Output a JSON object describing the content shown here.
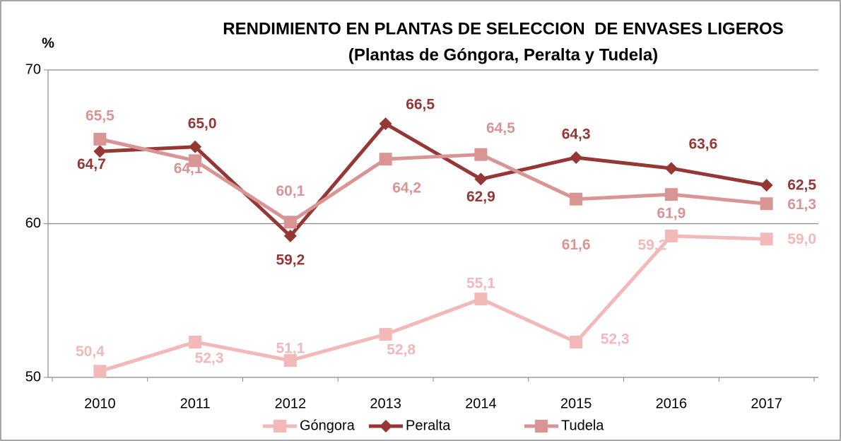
{
  "chart_data": {
    "type": "line",
    "title": "RENDIMIENTO EN PLANTAS DE SELECCION  DE ENVASES LIGEROS",
    "subtitle": "(Plantas de Góngora, Peralta y Tudela)",
    "y_label": "%",
    "categories": [
      "2010",
      "2011",
      "2012",
      "2013",
      "2014",
      "2015",
      "2016",
      "2017"
    ],
    "series": [
      {
        "name": "Góngora",
        "color": "#f2b9b8",
        "marker": "square",
        "values": [
          50.4,
          52.3,
          51.1,
          52.8,
          55.1,
          52.3,
          59.2,
          59.0
        ],
        "value_labels": [
          "50,4",
          "52,3",
          "51,1",
          "52,8",
          "55,1",
          "52,3",
          "59,2",
          "59,0"
        ]
      },
      {
        "name": "Peralta",
        "color": "#953735",
        "marker": "diamond",
        "values": [
          64.7,
          65.0,
          59.2,
          66.5,
          62.9,
          64.3,
          63.6,
          62.5
        ],
        "value_labels": [
          "64,7",
          "65,0",
          "59,2",
          "66,5",
          "62,9",
          "64,3",
          "63,6",
          "62,5"
        ]
      },
      {
        "name": "Tudela",
        "color": "#d99594",
        "marker": "square",
        "values": [
          65.5,
          64.1,
          60.1,
          64.2,
          64.5,
          61.6,
          61.9,
          61.3
        ],
        "value_labels": [
          "65,5",
          "64,1",
          "60,1",
          "64,2",
          "64,5",
          "61,6",
          "61,9",
          "61,3"
        ]
      }
    ],
    "ylim": [
      50,
      70
    ],
    "yticks": [
      50,
      60,
      70
    ],
    "grid": true,
    "legend": "bottom"
  }
}
